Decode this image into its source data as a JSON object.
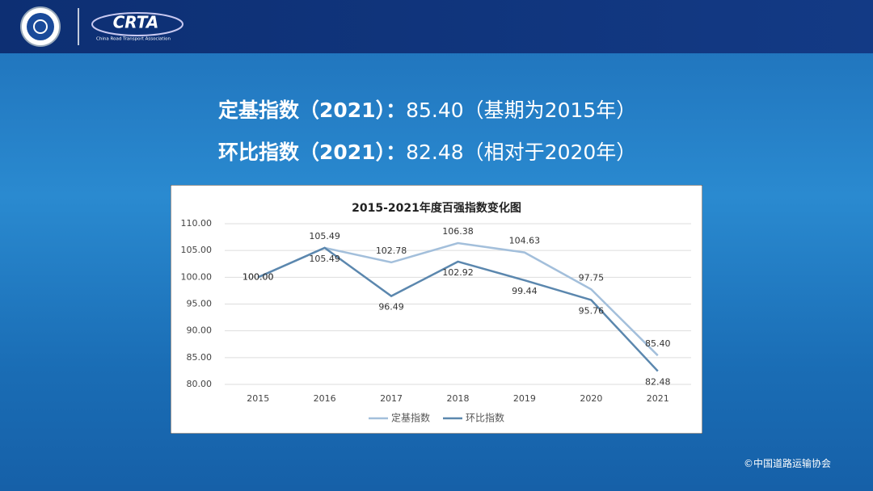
{
  "header": {
    "logo_text": "CRTA",
    "logo_subtext": "China Road Transport Association"
  },
  "headlines": [
    {
      "label": "定基指数（2021）：",
      "text": "85.40（基期为2015年）"
    },
    {
      "label": "环比指数（2021）：",
      "text": "82.48（相对于2020年）"
    }
  ],
  "footer": "©中国道路运输协会",
  "chart_data": {
    "type": "line",
    "title": "2015-2021年度百强指数变化图",
    "categories": [
      "2015",
      "2016",
      "2017",
      "2018",
      "2019",
      "2020",
      "2021"
    ],
    "series": [
      {
        "name": "定基指数",
        "color": "#a3bfdb",
        "values": [
          100,
          105.49,
          102.78,
          106.38,
          104.63,
          97.75,
          85.4
        ],
        "value_labels": [
          "100.00",
          "105.49",
          "102.78",
          "106.38",
          "104.63",
          "97.75",
          "85.40"
        ]
      },
      {
        "name": "环比指数",
        "color": "#5b87ae",
        "values": [
          100,
          105.49,
          96.49,
          102.92,
          99.44,
          95.76,
          82.48
        ],
        "value_labels": [
          "100.00",
          "105.49",
          "96.49",
          "102.92",
          "99.44",
          "95.76",
          "82.48"
        ]
      }
    ],
    "ylim": [
      80,
      110
    ],
    "yticks": [
      {
        "value": 80,
        "label": "80.00"
      },
      {
        "value": 85,
        "label": "85.00"
      },
      {
        "value": 90,
        "label": "90.00"
      },
      {
        "value": 95,
        "label": "95.00"
      },
      {
        "value": 100,
        "label": "100.00"
      },
      {
        "value": 105,
        "label": "105.00"
      },
      {
        "value": 110,
        "label": "110.00"
      }
    ],
    "grid": true,
    "legend": "bottom"
  }
}
